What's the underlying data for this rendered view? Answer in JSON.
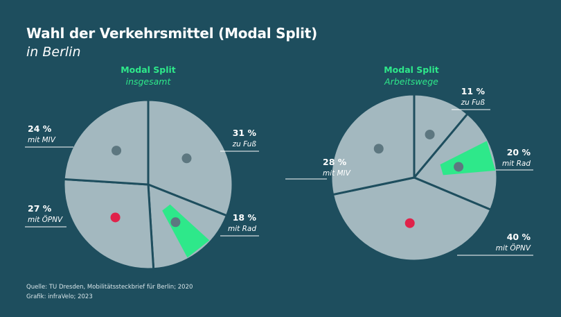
{
  "header": {
    "title": "Wahl der Verkehrsmittel (Modal Split)",
    "subtitle": "in Berlin"
  },
  "chart_data": [
    {
      "type": "pie",
      "title": "Modal Split",
      "subtitle": "insgesamt",
      "unit": "%",
      "slices": [
        {
          "label": "zu Fuß",
          "value": 31,
          "value_label": "31 %",
          "category_label": "zu Fuß",
          "color": "#a3b8bf"
        },
        {
          "label": "mit Rad",
          "value": 18,
          "value_label": "18 %",
          "category_label": "mit Rad",
          "color": "#a3b8bf"
        },
        {
          "label": "mit ÖPNV",
          "value": 27,
          "value_label": "27 %",
          "category_label": "mit ÖPNV",
          "color": "#a3b8bf"
        },
        {
          "label": "mit MIV",
          "value": 24,
          "value_label": "24 %",
          "category_label": "mit MIV",
          "color": "#a3b8bf"
        }
      ]
    },
    {
      "type": "pie",
      "title": "Modal Split",
      "subtitle": "Arbeitswege",
      "unit": "%",
      "slices": [
        {
          "label": "zu Fuß",
          "value": 11,
          "value_label": "11 %",
          "category_label": "zu Fuß",
          "color": "#a3b8bf"
        },
        {
          "label": "mit Rad",
          "value": 20,
          "value_label": "20 %",
          "category_label": "mit Rad",
          "color": "#a3b8bf"
        },
        {
          "label": "mit ÖPNV",
          "value": 40,
          "value_label": "40 %",
          "category_label": "mit ÖPNV",
          "color": "#a3b8bf"
        },
        {
          "label": "mit MIV",
          "value": 28,
          "value_label": "28 %",
          "category_label": "mit MIV",
          "color": "#a3b8bf"
        }
      ]
    }
  ],
  "colors": {
    "background": "#1e4e5e",
    "accent": "#2ee88a",
    "slice": "#a3b8bf",
    "divider": "#1e4e5e",
    "tram_red": "#e0224a"
  },
  "source": {
    "line1": "Quelle: TU Dresden, Mobilitätssteckbrief für Berlin; 2020",
    "line2": "Grafik: infraVelo; 2023"
  }
}
